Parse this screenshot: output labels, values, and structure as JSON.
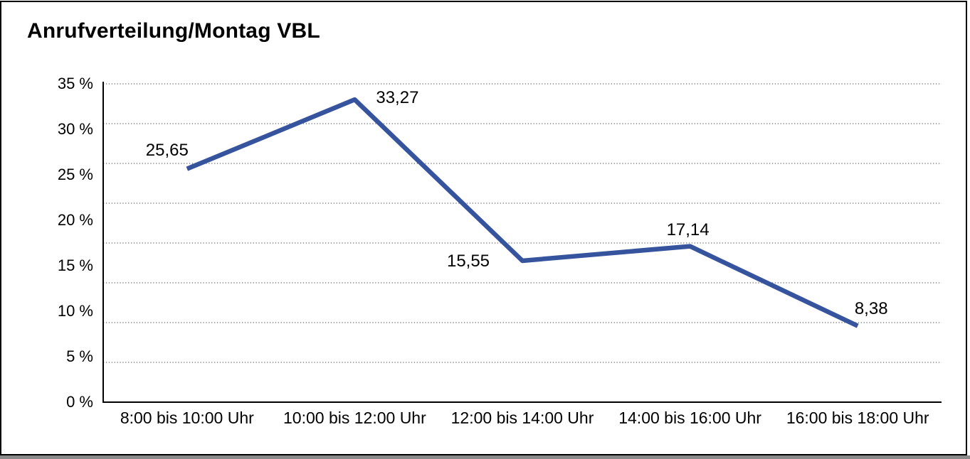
{
  "title": "Anrufverteilung/Montag VBL",
  "chart_data": {
    "type": "line",
    "title": "Anrufverteilung/Montag VBL",
    "categories": [
      "8:00 bis 10:00 Uhr",
      "10:00 bis 12:00 Uhr",
      "12:00 bis 14:00 Uhr",
      "14:00 bis 16:00 Uhr",
      "16:00 bis 18:00 Uhr"
    ],
    "values": [
      25.65,
      33.27,
      15.55,
      17.14,
      8.38
    ],
    "value_labels": [
      "25,65",
      "33,27",
      "15,55",
      "17,14",
      "8,38"
    ],
    "y_tick_labels": [
      "35 %",
      "30 %",
      "25 %",
      "20 %",
      "15 %",
      "10 %",
      "5 %",
      "0 %"
    ],
    "ylim": [
      0,
      35
    ],
    "xlabel": "",
    "ylabel": "",
    "grid": "horizontal-dotted",
    "legend": "none",
    "line_color": "#36549E",
    "axis_color": "#000000",
    "gridline_color": "#6e6e6e"
  }
}
